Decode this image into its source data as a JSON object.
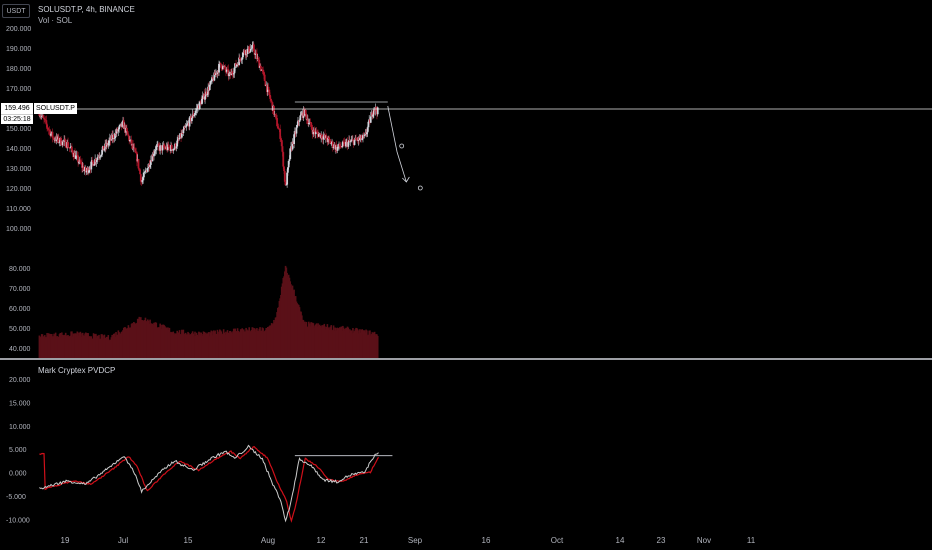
{
  "header": {
    "currency_badge": "USDT",
    "symbol_title": "SOLUSDT.P, 4h, BINANCE",
    "volume_title": "Vol · SOL",
    "indicator_title": "Mark Cryptex PVDCP"
  },
  "price_marker": {
    "value": "159.496",
    "countdown": "03:25:18",
    "symbol": "SOLUSDT.P"
  },
  "colors": {
    "up": "#d1d4dc",
    "down": "#b2162a",
    "volume": "#5a1018",
    "indicator_fast": "#cccccc",
    "indicator_slow": "#d0101a",
    "grid_text": "#b2b5be",
    "divider": "#d1d4dc"
  },
  "chart_data": [
    {
      "type": "candlestick",
      "title": "SOLUSDT.P, 4h, BINANCE",
      "ylim": [
        100,
        200
      ],
      "y_ticks": [
        "200.000",
        "190.000",
        "180.000",
        "170.000",
        "160.000",
        "150.000",
        "140.000",
        "130.000",
        "120.000",
        "110.000",
        "100.000"
      ],
      "x_ticks": [
        "19",
        "Jul",
        "15",
        "Aug",
        "12",
        "21",
        "Sep",
        "16",
        "Oct",
        "14",
        "23",
        "Nov",
        "11"
      ],
      "path_keypoints": [
        {
          "x": "Jun 13",
          "y": 158
        },
        {
          "x": "Jun 16",
          "y": 145
        },
        {
          "x": "Jun 19",
          "y": 142
        },
        {
          "x": "Jun 23",
          "y": 128
        },
        {
          "x": "Jun 27",
          "y": 140
        },
        {
          "x": "Jul 1",
          "y": 152
        },
        {
          "x": "Jul 4",
          "y": 135
        },
        {
          "x": "Jul 5",
          "y": 123
        },
        {
          "x": "Jul 8",
          "y": 140
        },
        {
          "x": "Jul 12",
          "y": 140
        },
        {
          "x": "Jul 15",
          "y": 152
        },
        {
          "x": "Jul 19",
          "y": 168
        },
        {
          "x": "Jul 22",
          "y": 182
        },
        {
          "x": "Jul 24",
          "y": 176
        },
        {
          "x": "Jul 27",
          "y": 188
        },
        {
          "x": "Jul 29",
          "y": 190
        },
        {
          "x": "Jul 31",
          "y": 178
        },
        {
          "x": "Aug 2",
          "y": 162
        },
        {
          "x": "Aug 4",
          "y": 145
        },
        {
          "x": "Aug 5",
          "y": 120
        },
        {
          "x": "Aug 6",
          "y": 138
        },
        {
          "x": "Aug 8",
          "y": 155
        },
        {
          "x": "Aug 9",
          "y": 158
        },
        {
          "x": "Aug 11",
          "y": 148
        },
        {
          "x": "Aug 13",
          "y": 146
        },
        {
          "x": "Aug 16",
          "y": 140
        },
        {
          "x": "Aug 19",
          "y": 143
        },
        {
          "x": "Aug 22",
          "y": 145
        },
        {
          "x": "Aug 24",
          "y": 160
        },
        {
          "x": "Aug 25",
          "y": 158
        }
      ],
      "resistance_line": {
        "x_start": "Aug 7",
        "x_end": "Aug 27",
        "y": 163
      },
      "last_price_line": 159.496,
      "projection_arrow": [
        {
          "x": "Aug 27",
          "y": 161
        },
        {
          "x": "Aug 29",
          "y": 138
        },
        {
          "x": "Aug 31",
          "y": 123
        }
      ],
      "projection_circles": [
        {
          "x": "Aug 30",
          "y": 141
        },
        {
          "x": "Sep 3",
          "y": 120
        }
      ]
    },
    {
      "type": "bar",
      "title": "Vol · SOL",
      "y_ticks": [
        "80.000",
        "70.000",
        "60.000",
        "50.000",
        "40.000"
      ],
      "ylim": [
        35,
        85
      ],
      "keypoints": [
        {
          "x": "Jun 13",
          "y": 46
        },
        {
          "x": "Jun 21",
          "y": 47
        },
        {
          "x": "Jun 28",
          "y": 45
        },
        {
          "x": "Jul 5",
          "y": 55
        },
        {
          "x": "Jul 12",
          "y": 48
        },
        {
          "x": "Jul 19",
          "y": 47
        },
        {
          "x": "Jul 26",
          "y": 49
        },
        {
          "x": "Aug 1",
          "y": 49
        },
        {
          "x": "Aug 3",
          "y": 55
        },
        {
          "x": "Aug 5",
          "y": 80
        },
        {
          "x": "Aug 7",
          "y": 67
        },
        {
          "x": "Aug 9",
          "y": 52
        },
        {
          "x": "Aug 16",
          "y": 50
        },
        {
          "x": "Aug 25",
          "y": 47
        }
      ]
    },
    {
      "type": "line",
      "title": "Mark Cryptex PVDCP",
      "ylim": [
        -12,
        22
      ],
      "y_ticks": [
        "20.000",
        "15.000",
        "10.000",
        "5.000",
        "0.000",
        "-5.000",
        "-10.000"
      ],
      "series": [
        {
          "keypoints": [
            {
              "x": "Jun 13",
              "y": -3.5
            },
            {
              "x": "Jun 19",
              "y": -1.8
            },
            {
              "x": "Jun 23",
              "y": -2.5
            },
            {
              "x": "Jun 28",
              "y": 1
            },
            {
              "x": "Jul 1",
              "y": 3.5
            },
            {
              "x": "Jul 3",
              "y": 1
            },
            {
              "x": "Jul 5",
              "y": -4
            },
            {
              "x": "Jul 9",
              "y": 0
            },
            {
              "x": "Jul 12",
              "y": 2.5
            },
            {
              "x": "Jul 16",
              "y": 0.5
            },
            {
              "x": "Jul 20",
              "y": 3
            },
            {
              "x": "Jul 23",
              "y": 4.5
            },
            {
              "x": "Jul 25",
              "y": 3
            },
            {
              "x": "Jul 28",
              "y": 5.5
            },
            {
              "x": "Jul 31",
              "y": 3
            },
            {
              "x": "Aug 2",
              "y": -2
            },
            {
              "x": "Aug 4",
              "y": -6
            },
            {
              "x": "Aug 5",
              "y": -10.5
            },
            {
              "x": "Aug 6",
              "y": -7
            },
            {
              "x": "Aug 8",
              "y": 3
            },
            {
              "x": "Aug 11",
              "y": 1
            },
            {
              "x": "Aug 13",
              "y": -1.5
            },
            {
              "x": "Aug 16",
              "y": -2
            },
            {
              "x": "Aug 19",
              "y": -0.5
            },
            {
              "x": "Aug 22",
              "y": 0
            },
            {
              "x": "Aug 24",
              "y": 3.5
            },
            {
              "x": "Aug 25",
              "y": 4
            }
          ]
        }
      ],
      "resistance_line": {
        "x_start": "Aug 7",
        "x_end": "Aug 28",
        "y": 3.6
      }
    }
  ]
}
